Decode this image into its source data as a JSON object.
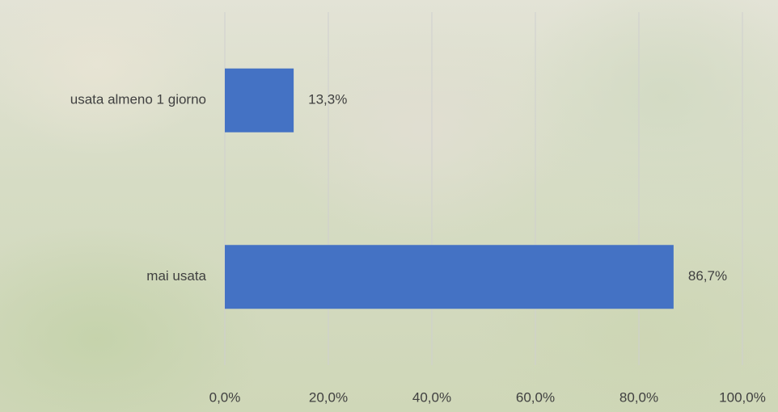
{
  "chart_data": {
    "type": "bar",
    "orientation": "horizontal",
    "categories": [
      "usata almeno 1 giorno",
      "mai usata"
    ],
    "values": [
      13.3,
      86.7
    ],
    "value_labels": [
      "13,3%",
      "86,7%"
    ],
    "color": "#4472c4",
    "xlim": [
      0,
      100
    ],
    "xticks": [
      {
        "value": 0,
        "label": "0,0%"
      },
      {
        "value": 20,
        "label": "20,0%"
      },
      {
        "value": 40,
        "label": "40,0%"
      },
      {
        "value": 60,
        "label": "60,0%"
      },
      {
        "value": 80,
        "label": "80,0%"
      },
      {
        "value": 100,
        "label": "100,0%"
      }
    ],
    "grid": true
  }
}
